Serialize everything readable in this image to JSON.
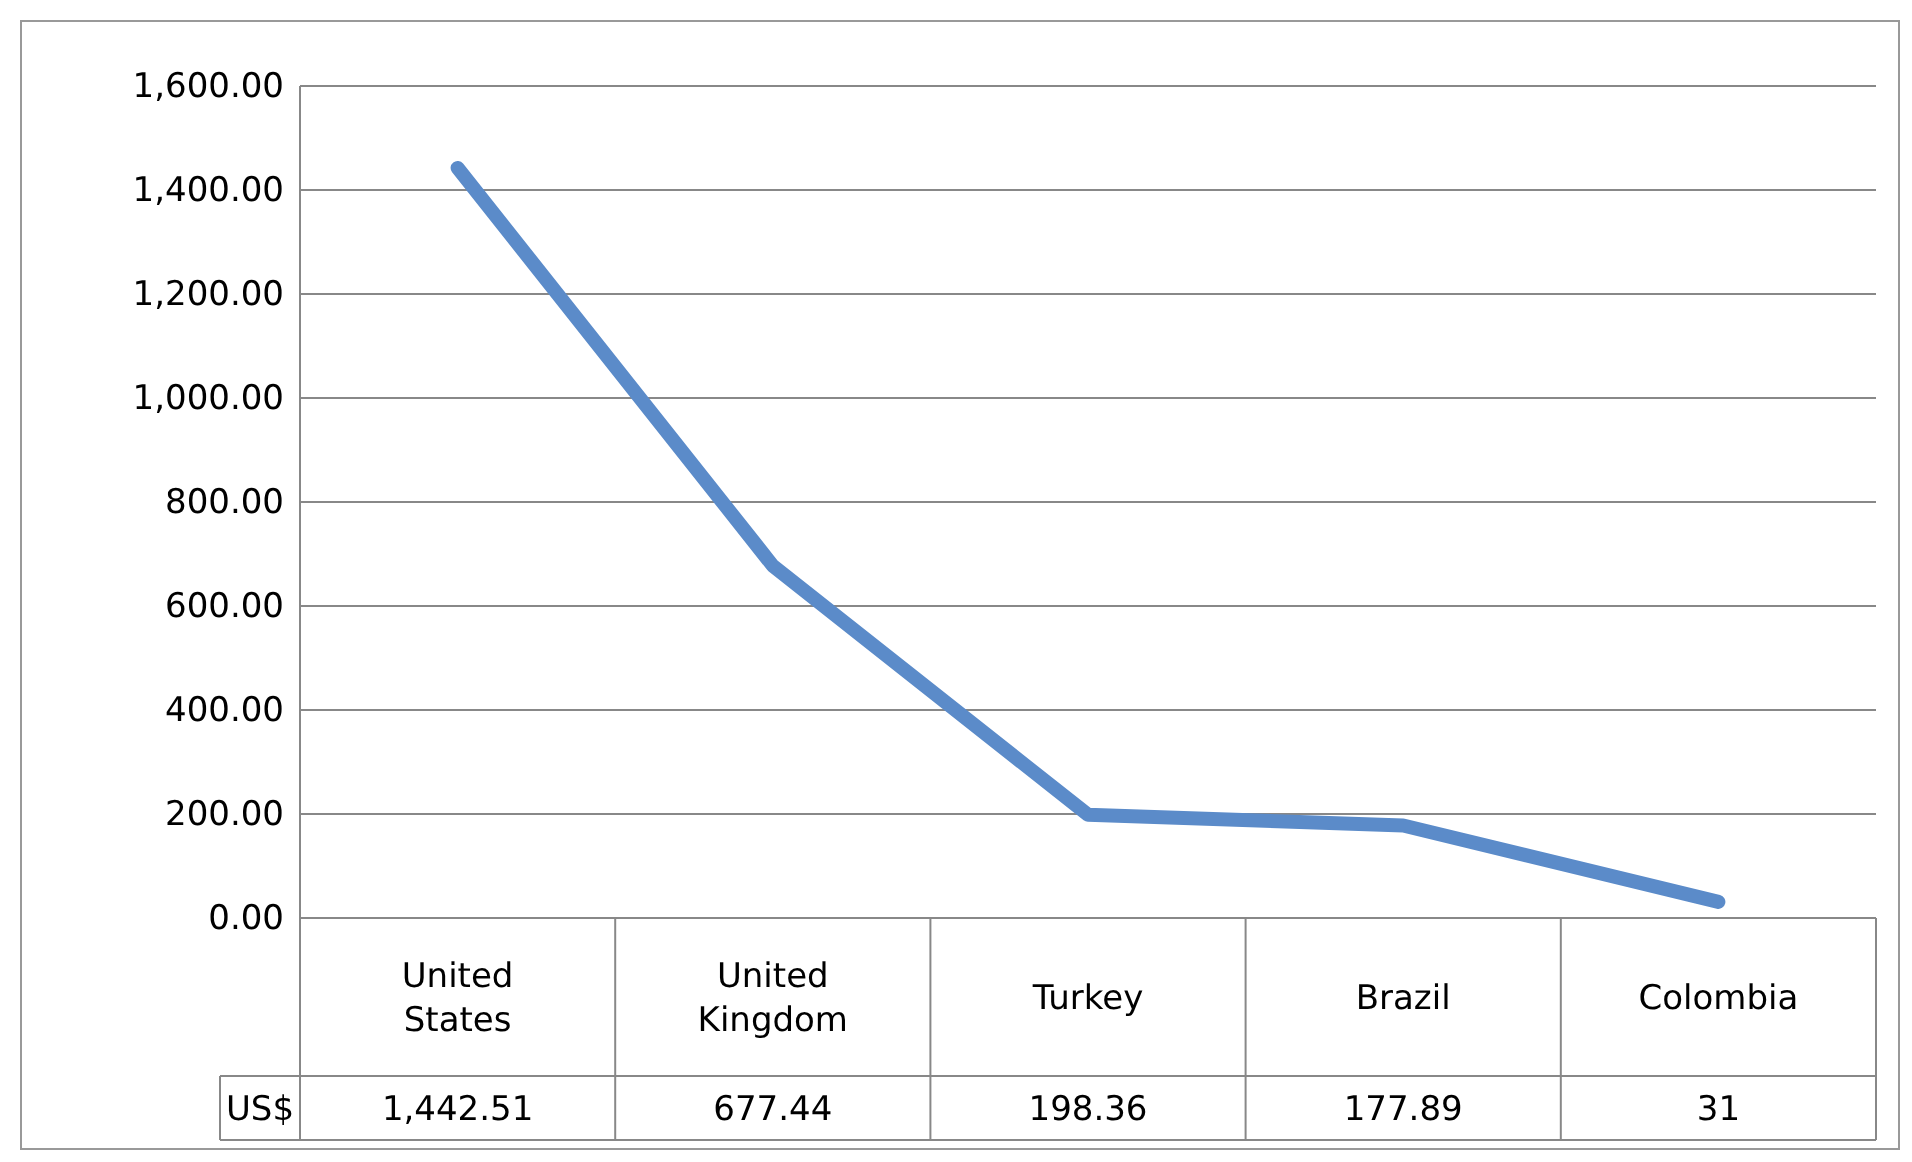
{
  "chart_data": {
    "type": "line",
    "categories": [
      "United States",
      "United Kingdom",
      "Turkey",
      "Brazil",
      "Colombia"
    ],
    "series": [
      {
        "name": "US$",
        "color": "#5b8bc9",
        "values": [
          1442.51,
          677.44,
          198.36,
          177.89,
          31
        ],
        "value_labels": [
          "1,442.51",
          "677.44",
          "198.36",
          "177.89",
          "31"
        ]
      }
    ],
    "ylim": [
      0,
      1600
    ],
    "yticks": [
      {
        "value": 0,
        "label": "0.00"
      },
      {
        "value": 200,
        "label": "200.00"
      },
      {
        "value": 400,
        "label": "400.00"
      },
      {
        "value": 600,
        "label": "600.00"
      },
      {
        "value": 800,
        "label": "800.00"
      },
      {
        "value": 1000,
        "label": "1,000.00"
      },
      {
        "value": 1200,
        "label": "1,200.00"
      },
      {
        "value": 1400,
        "label": "1,400.00"
      },
      {
        "value": 1600,
        "label": "1,600.00"
      }
    ],
    "grid": "y",
    "marker": "none",
    "line_style": "solid"
  }
}
